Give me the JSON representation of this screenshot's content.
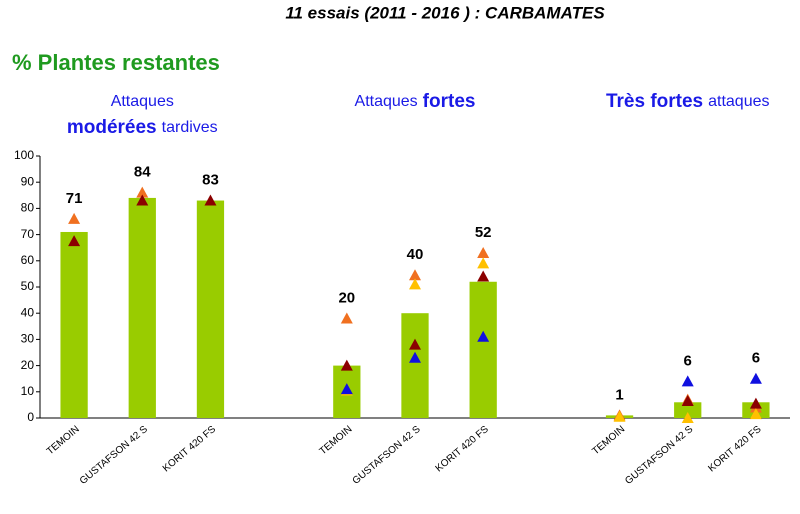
{
  "chart_data": {
    "type": "bar",
    "title": "11 essais  (2011 - 2016 ) : CARBAMATES",
    "subtitle": "% Plantes restantes",
    "group_labels": [
      {
        "lines": [
          [
            {
              "text": "Attaques",
              "bold": false
            }
          ],
          [
            {
              "text": "modérées",
              "bold": true
            },
            {
              "text": "tardives",
              "bold": false
            }
          ]
        ]
      },
      {
        "lines": [
          [
            {
              "text": "Attaques",
              "bold": false
            },
            {
              "text": "fortes",
              "bold": true
            }
          ]
        ]
      },
      {
        "lines": [
          [
            {
              "text": "Très fortes",
              "bold": true
            },
            {
              "text": "attaques",
              "bold": false
            }
          ]
        ]
      }
    ],
    "categories": [
      "TEMOIN",
      "GUSTAFSON 42 S",
      "KORIT 420 FS",
      null,
      "TEMOIN",
      "GUSTAFSON 42 S",
      "KORIT 420 FS",
      null,
      "TEMOIN",
      "GUSTAFSON 42 S",
      "KORIT 420 FS"
    ],
    "values": [
      71,
      84,
      83,
      null,
      20,
      40,
      52,
      null,
      1,
      6,
      6
    ],
    "color": "#99cc00",
    "series": [
      {
        "color": "#f07020",
        "values": [
          76,
          86,
          null,
          null,
          38,
          54.5,
          63,
          null,
          1,
          7,
          4
        ]
      },
      {
        "color": "#8b0000",
        "values": [
          67.5,
          83,
          83,
          null,
          20,
          28,
          54,
          null,
          null,
          6.5,
          5.5
        ]
      },
      {
        "color": "#ffc000",
        "values": [
          null,
          null,
          null,
          null,
          10.5,
          51,
          59,
          null,
          0.5,
          0,
          1.5
        ]
      },
      {
        "color": "#1010e0",
        "values": [
          null,
          null,
          null,
          null,
          11,
          23,
          31,
          null,
          null,
          14,
          15
        ]
      }
    ],
    "ylim": [
      0,
      100
    ],
    "yticks": [
      0,
      10,
      20,
      30,
      40,
      50,
      60,
      70,
      80,
      90,
      100
    ],
    "grid": false
  }
}
